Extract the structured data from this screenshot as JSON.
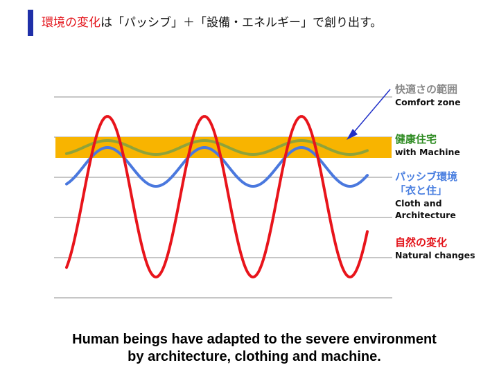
{
  "header": {
    "title_highlight": "環境の変化",
    "title_rest": "は「パッシブ」＋「設備・エネルギー」で創り出す。",
    "accent_bar_color": "#1f2fa8",
    "highlight_color": "#e3141b"
  },
  "legend": {
    "comfort": {
      "jp": "快適さの範囲",
      "en": "Comfort zone",
      "color": "#8a8a8a"
    },
    "machine": {
      "jp": "健康住宅",
      "en": "with Machine",
      "color": "#2e8b22"
    },
    "passive": {
      "jp": "パッシブ環境",
      "jp2": "「衣と住」",
      "en": "Cloth and",
      "en2": "Architecture",
      "color": "#4a7fe0"
    },
    "natural": {
      "jp": "自然の変化",
      "en": "Natural changes",
      "color": "#e3141b"
    }
  },
  "colors": {
    "comfort_band": "#f8b400",
    "natural_line": "#e8141b",
    "passive_line": "#4a78de",
    "machine_line": "#8fa33a",
    "grid": "#8c8c8c",
    "arrow": "#1f2fc8"
  },
  "caption": {
    "line1": "Human beings have adapted to the severe environment",
    "line2": "by architecture, clothing and machine."
  }
}
